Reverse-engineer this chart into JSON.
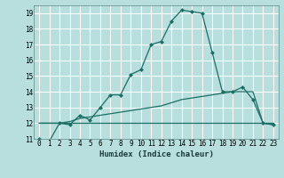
{
  "title": "",
  "xlabel": "Humidex (Indice chaleur)",
  "bg_color": "#b8dede",
  "grid_color": "#ffffff",
  "line_color": "#1a6e64",
  "x_values": [
    0,
    1,
    2,
    3,
    4,
    5,
    6,
    7,
    8,
    9,
    10,
    11,
    12,
    13,
    14,
    15,
    16,
    17,
    18,
    19,
    20,
    21,
    22,
    23
  ],
  "line1_y": [
    11.0,
    10.85,
    12.0,
    11.9,
    12.5,
    12.2,
    13.0,
    13.8,
    13.8,
    15.1,
    15.4,
    17.0,
    17.2,
    18.5,
    19.2,
    19.1,
    19.0,
    16.5,
    14.0,
    14.0,
    14.3,
    13.5,
    12.0,
    11.9
  ],
  "line2_y": [
    12.0,
    12.0,
    12.0,
    12.0,
    12.0,
    12.0,
    12.0,
    12.0,
    12.0,
    12.0,
    12.0,
    12.0,
    12.0,
    12.0,
    12.0,
    12.0,
    12.0,
    12.0,
    12.0,
    12.0,
    12.0,
    12.0,
    12.0,
    12.0
  ],
  "line3_y": [
    12.0,
    12.0,
    12.0,
    12.1,
    12.3,
    12.4,
    12.5,
    12.6,
    12.7,
    12.8,
    12.9,
    13.0,
    13.1,
    13.3,
    13.5,
    13.6,
    13.7,
    13.8,
    13.9,
    14.0,
    14.0,
    14.0,
    12.0,
    11.9
  ],
  "ylim": [
    11,
    19.5
  ],
  "xlim": [
    -0.5,
    23.5
  ],
  "yticks": [
    11,
    12,
    13,
    14,
    15,
    16,
    17,
    18,
    19
  ],
  "xticks": [
    0,
    1,
    2,
    3,
    4,
    5,
    6,
    7,
    8,
    9,
    10,
    11,
    12,
    13,
    14,
    15,
    16,
    17,
    18,
    19,
    20,
    21,
    22,
    23
  ],
  "xlabel_fontsize": 6.5,
  "tick_fontsize": 5.5
}
